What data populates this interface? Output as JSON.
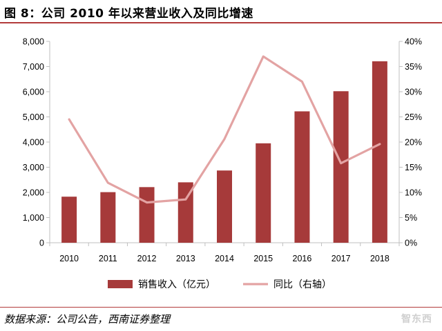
{
  "header": {
    "title": "图 8：公司 2010 年以来营业收入及同比增速"
  },
  "footer": {
    "source": "数据来源：公司公告，西南证券整理",
    "watermark": "智东西"
  },
  "colors": {
    "bar": "#a63a3a",
    "line": "#e3a3a3",
    "axis": "#bfbfbf",
    "rule": "#b23a3a"
  },
  "chart_data": {
    "type": "bar",
    "categories": [
      "2010",
      "2011",
      "2012",
      "2013",
      "2014",
      "2015",
      "2016",
      "2017",
      "2018"
    ],
    "series": [
      {
        "name": "销售收入（亿元）",
        "type": "bar",
        "axis": "left",
        "values": [
          1830,
          2010,
          2210,
          2400,
          2870,
          3950,
          5220,
          6020,
          7210
        ]
      },
      {
        "name": "同比（右轴）",
        "type": "line",
        "axis": "right",
        "values": [
          24.5,
          11.9,
          8.0,
          8.6,
          20.6,
          37.0,
          32.0,
          15.8,
          19.6
        ]
      }
    ],
    "y_left": {
      "min": 0,
      "max": 8000,
      "step": 1000,
      "ticks": [
        "0",
        "1,000",
        "2,000",
        "3,000",
        "4,000",
        "5,000",
        "6,000",
        "7,000",
        "8,000"
      ]
    },
    "y_right": {
      "min": 0,
      "max": 40,
      "step": 5,
      "ticks": [
        "0%",
        "5%",
        "10%",
        "15%",
        "20%",
        "25%",
        "30%",
        "35%",
        "40%"
      ]
    },
    "legend_position": "bottom",
    "grid": false
  }
}
